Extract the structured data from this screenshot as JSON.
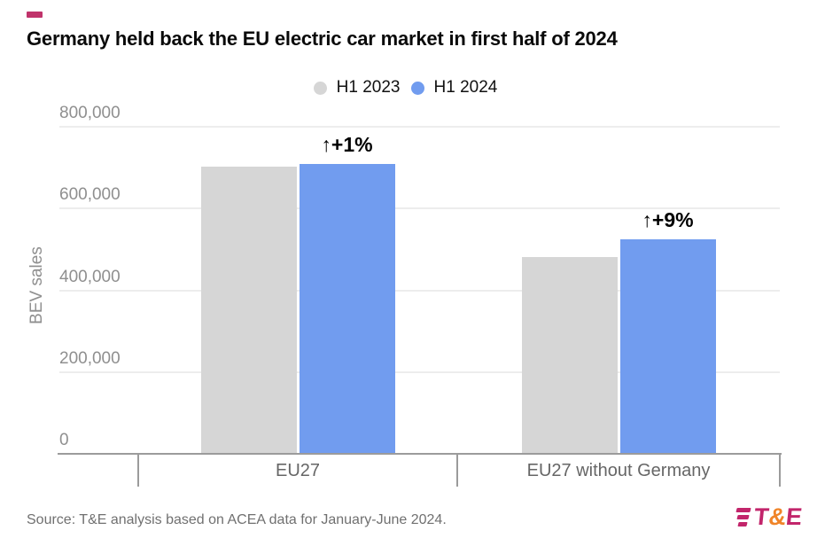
{
  "accent_color": "#C0336B",
  "header": {
    "title": "Germany held back the EU electric car market in first half of 2024"
  },
  "chart_data": {
    "type": "bar",
    "title": "Germany held back the EU electric car market in first half of 2024",
    "categories": [
      "EU27",
      "EU27 without Germany"
    ],
    "series": [
      {
        "name": "H1 2023",
        "color": "#D6D6D6",
        "values": [
          700000,
          480000
        ]
      },
      {
        "name": "H1 2024",
        "color": "#719CEF",
        "values": [
          707000,
          523000
        ]
      }
    ],
    "annotations": [
      {
        "text": "↑+1%",
        "category": 0
      },
      {
        "text": "↑+9%",
        "category": 1
      }
    ],
    "xlabel": "",
    "ylabel": "BEV sales",
    "ylim": [
      0,
      800000
    ],
    "yticks": [
      0,
      200000,
      400000,
      600000,
      800000
    ],
    "ytick_labels": [
      "0",
      "200,000",
      "400,000",
      "600,000",
      "800,000"
    ],
    "grid": true,
    "legend_position": "top"
  },
  "footer": {
    "source": "Source: T&E analysis based on ACEA data for January-June 2024.",
    "logo": {
      "t": "T",
      "amp": "&",
      "e": "E",
      "pink": "#C2256B",
      "orange": "#F08428"
    }
  }
}
